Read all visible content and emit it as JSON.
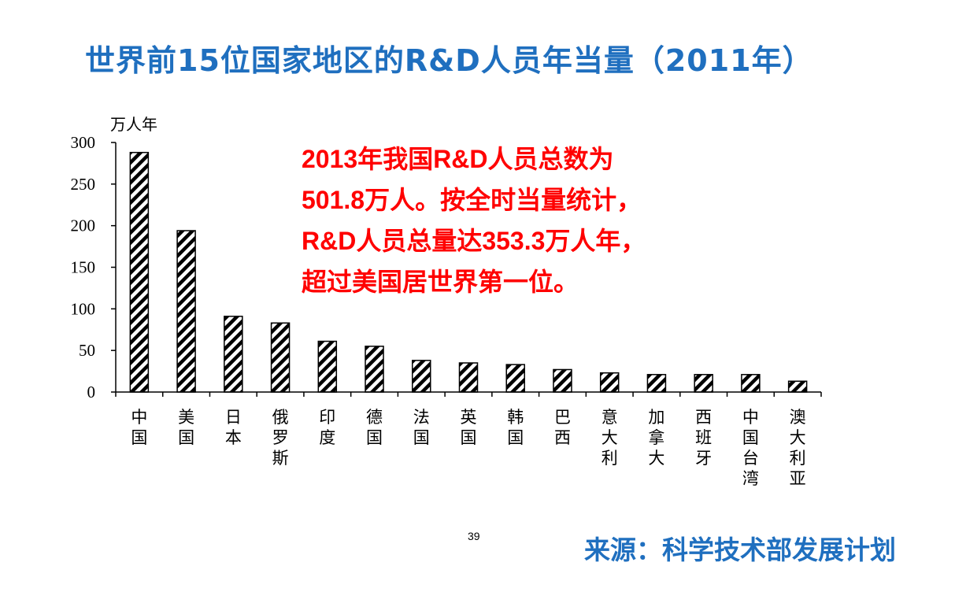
{
  "title": "世界前15位国家地区的R&D人员年当量（2011年）",
  "annotation": {
    "lines": [
      "2013年我国R&D人员总数为",
      "501.8万人。按全时当量统计，",
      "R&D人员总量达353.3万人年，",
      "超过美国居世界第一位。"
    ],
    "color": "#ff0000"
  },
  "page_number": "39",
  "source": "来源：科学技术部发展计划",
  "colors": {
    "title": "#1f6fbf",
    "annotation": "#ff0000",
    "bars": "#000000"
  },
  "chart_data": {
    "type": "bar",
    "unit_label": "万人年",
    "categories": [
      "中国",
      "美国",
      "日本",
      "俄罗斯",
      "印度",
      "德国",
      "法国",
      "英国",
      "韩国",
      "巴西",
      "意大利",
      "加拿大",
      "西班牙",
      "中国台湾",
      "澳大利亚"
    ],
    "values": [
      288,
      194,
      91,
      83,
      61,
      55,
      38,
      35,
      33,
      27,
      23,
      21,
      21,
      21,
      13
    ],
    "yticks": [
      0,
      50,
      100,
      150,
      200,
      250,
      300
    ],
    "ylim": [
      0,
      300
    ],
    "grid": false,
    "legend": "none",
    "bar_pattern": "diagonal-hatch"
  }
}
